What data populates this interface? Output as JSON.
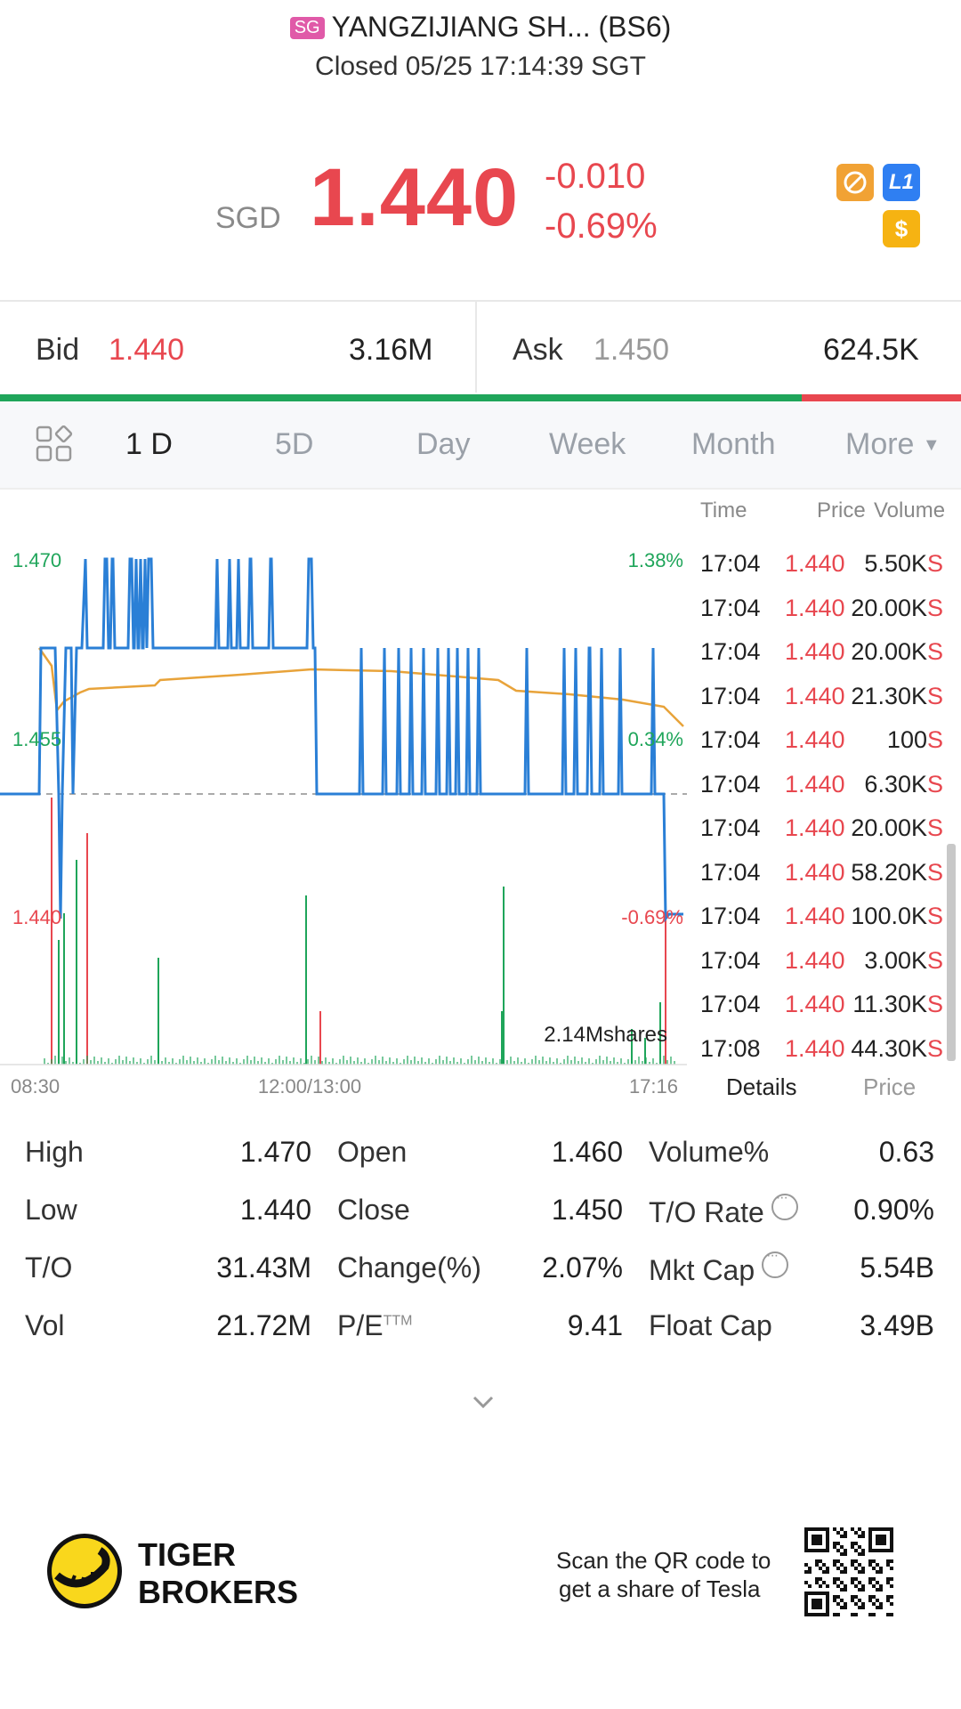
{
  "header": {
    "badge": "SG",
    "title": "YANGZIJIANG SH... (BS6)",
    "status": "Closed 05/25 17:14:39 SGT"
  },
  "quote": {
    "currency": "SGD",
    "price": "1.440",
    "change": "-0.010",
    "change_pct": "-0.69%",
    "icons": [
      "no-trade-icon",
      "level1-icon",
      "dollar-icon"
    ],
    "icon_text": {
      "level1": "L1",
      "dollar": "$"
    }
  },
  "bid_ask": {
    "bid_label": "Bid",
    "bid_price": "1.440",
    "bid_volume": "3.16M",
    "ask_label": "Ask",
    "ask_price": "1.450",
    "ask_volume": "624.5K",
    "bid_share": 0.834
  },
  "tabs": [
    "1 D",
    "5D",
    "Day",
    "Week",
    "Month",
    "More"
  ],
  "active_tab": "1 D",
  "chart_data": {
    "type": "line",
    "y_left_ticks": [
      "1.470",
      "1.455",
      "1.440"
    ],
    "y_right_ticks": [
      "1.38%",
      "0.34%",
      "-0.69%"
    ],
    "x_labels": [
      "08:30",
      "12:00/13:00",
      "17:16"
    ],
    "volume_label": "2.14Mshares",
    "ylim": [
      1.44,
      1.47
    ],
    "prev_close": 1.45,
    "price_line": "blue",
    "avg_line": "orange"
  },
  "trades": {
    "headers": {
      "time": "Time",
      "price": "Price",
      "volume": "Volume"
    },
    "side": "S",
    "rows": [
      {
        "time": "17:04",
        "price": "1.440",
        "volume": "5.50K"
      },
      {
        "time": "17:04",
        "price": "1.440",
        "volume": "20.00K"
      },
      {
        "time": "17:04",
        "price": "1.440",
        "volume": "20.00K"
      },
      {
        "time": "17:04",
        "price": "1.440",
        "volume": "21.30K"
      },
      {
        "time": "17:04",
        "price": "1.440",
        "volume": "100"
      },
      {
        "time": "17:04",
        "price": "1.440",
        "volume": "6.30K"
      },
      {
        "time": "17:04",
        "price": "1.440",
        "volume": "20.00K"
      },
      {
        "time": "17:04",
        "price": "1.440",
        "volume": "58.20K"
      },
      {
        "time": "17:04",
        "price": "1.440",
        "volume": "100.0K"
      },
      {
        "time": "17:04",
        "price": "1.440",
        "volume": "3.00K"
      },
      {
        "time": "17:04",
        "price": "1.440",
        "volume": "11.30K"
      },
      {
        "time": "17:08",
        "price": "1.440",
        "volume": "44.30K"
      }
    ],
    "switch": {
      "details": "Details",
      "price": "Price"
    }
  },
  "stats": {
    "col1": [
      {
        "label": "High",
        "value": "1.470"
      },
      {
        "label": "Low",
        "value": "1.440"
      },
      {
        "label": "T/O",
        "value": "31.43M"
      },
      {
        "label": "Vol",
        "value": "21.72M"
      }
    ],
    "col2": [
      {
        "label": "Open",
        "value": "1.460"
      },
      {
        "label": "Close",
        "value": "1.450"
      },
      {
        "label": "Change(%)",
        "value": "2.07%"
      },
      {
        "label": "P/E",
        "sup": "TTM",
        "value": "9.41"
      }
    ],
    "col3": [
      {
        "label": "Volume%",
        "value": "0.63"
      },
      {
        "label": "T/O Rate",
        "value": "0.90%"
      },
      {
        "label": "Mkt Cap",
        "value": "5.54B"
      },
      {
        "label": "Float Cap",
        "value": "3.49B"
      }
    ]
  },
  "footer": {
    "brand_line1": "TIGER",
    "brand_line2": "BROKERS",
    "qr_text1": "Scan the QR code to",
    "qr_text2": "get a share of Tesla"
  },
  "colors": {
    "up": "#1fa55a",
    "down": "#e8474f",
    "line": "#2a7fd6",
    "avg": "#e8a33a"
  }
}
